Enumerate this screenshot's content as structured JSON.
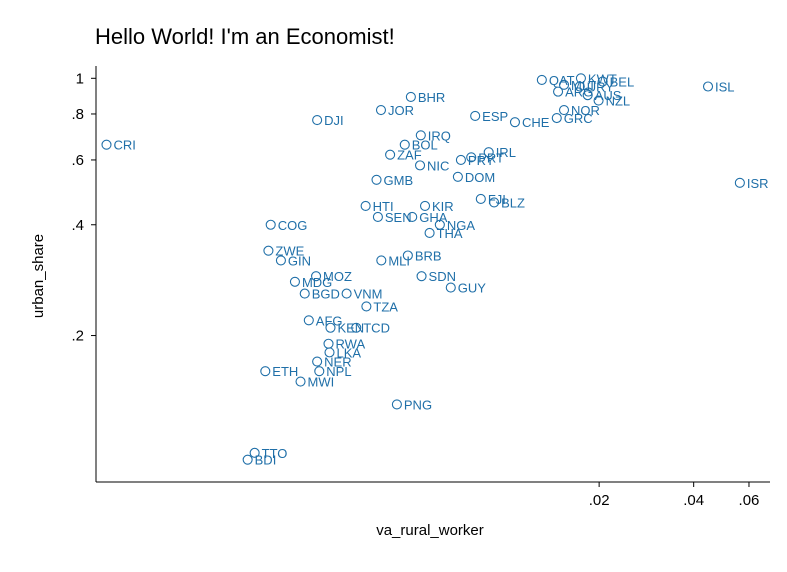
{
  "chart_data": {
    "type": "scatter",
    "title": "Hello World! I'm an Economist!",
    "xlabel": "va_rural_worker",
    "ylabel": "urban_share",
    "x_scale": "log",
    "y_scale": "log",
    "xlim": [
      0.0005,
      0.07
    ],
    "ylim": [
      0.08,
      1.08
    ],
    "x_ticks": [
      {
        "value": 0.02,
        "label": ".02"
      },
      {
        "value": 0.04,
        "label": ".04"
      },
      {
        "value": 0.06,
        "label": ".06"
      }
    ],
    "y_ticks": [
      {
        "value": 0.2,
        "label": ".2"
      },
      {
        "value": 0.4,
        "label": ".4"
      },
      {
        "value": 0.6,
        "label": ".6"
      },
      {
        "value": 0.8,
        "label": ".8"
      },
      {
        "value": 1,
        "label": "1"
      }
    ],
    "marker_color": "#1f6fa8",
    "points": [
      {
        "label": "CRI",
        "x": 0.00054,
        "y": 0.66
      },
      {
        "label": "DJI",
        "x": 0.00253,
        "y": 0.77
      },
      {
        "label": "JOR",
        "x": 0.00404,
        "y": 0.82
      },
      {
        "label": "BHR",
        "x": 0.00503,
        "y": 0.89
      },
      {
        "label": "QAT",
        "x": 0.01314,
        "y": 0.99
      },
      {
        "label": "KWT",
        "x": 0.0175,
        "y": 1.0
      },
      {
        "label": "BEL",
        "x": 0.02052,
        "y": 0.98
      },
      {
        "label": "MLT",
        "x": 0.01546,
        "y": 0.96
      },
      {
        "label": "URY",
        "x": 0.01735,
        "y": 0.95
      },
      {
        "label": "ARG",
        "x": 0.0148,
        "y": 0.92
      },
      {
        "label": "AUS",
        "x": 0.01839,
        "y": 0.9
      },
      {
        "label": "NZL",
        "x": 0.01992,
        "y": 0.87
      },
      {
        "label": "ISL",
        "x": 0.04444,
        "y": 0.95
      },
      {
        "label": "ISR",
        "x": 0.05612,
        "y": 0.52
      },
      {
        "label": "NOR",
        "x": 0.01546,
        "y": 0.82
      },
      {
        "label": "GRC",
        "x": 0.01466,
        "y": 0.78
      },
      {
        "label": "CHE",
        "x": 0.01079,
        "y": 0.76
      },
      {
        "label": "ESP",
        "x": 0.00806,
        "y": 0.79
      },
      {
        "label": "PRT",
        "x": 0.00783,
        "y": 0.61
      },
      {
        "label": "IRL",
        "x": 0.0089,
        "y": 0.63
      },
      {
        "label": "IRQ",
        "x": 0.00541,
        "y": 0.7
      },
      {
        "label": "BOL",
        "x": 0.00481,
        "y": 0.66
      },
      {
        "label": "ZAF",
        "x": 0.00432,
        "y": 0.62
      },
      {
        "label": "NIC",
        "x": 0.00538,
        "y": 0.58
      },
      {
        "label": "PRY",
        "x": 0.00726,
        "y": 0.6
      },
      {
        "label": "DOM",
        "x": 0.0071,
        "y": 0.54
      },
      {
        "label": "GMB",
        "x": 0.00391,
        "y": 0.53
      },
      {
        "label": "BLZ",
        "x": 0.00926,
        "y": 0.46
      },
      {
        "label": "FJI",
        "x": 0.0084,
        "y": 0.47
      },
      {
        "label": "KIR",
        "x": 0.00558,
        "y": 0.45
      },
      {
        "label": "HTI",
        "x": 0.00361,
        "y": 0.45
      },
      {
        "label": "SEN",
        "x": 0.00395,
        "y": 0.42
      },
      {
        "label": "GHA",
        "x": 0.00508,
        "y": 0.42
      },
      {
        "label": "NGA",
        "x": 0.00622,
        "y": 0.4
      },
      {
        "label": "THA",
        "x": 0.00577,
        "y": 0.38
      },
      {
        "label": "COG",
        "x": 0.0018,
        "y": 0.4
      },
      {
        "label": "ZWE",
        "x": 0.00177,
        "y": 0.34
      },
      {
        "label": "GIN",
        "x": 0.00194,
        "y": 0.32
      },
      {
        "label": "MLI",
        "x": 0.00405,
        "y": 0.32
      },
      {
        "label": "BRB",
        "x": 0.00492,
        "y": 0.33
      },
      {
        "label": "MOZ",
        "x": 0.00251,
        "y": 0.29
      },
      {
        "label": "MDG",
        "x": 0.00215,
        "y": 0.28
      },
      {
        "label": "BGD",
        "x": 0.00231,
        "y": 0.26
      },
      {
        "label": "VNM",
        "x": 0.00314,
        "y": 0.26
      },
      {
        "label": "SDN",
        "x": 0.00544,
        "y": 0.29
      },
      {
        "label": "GUY",
        "x": 0.00674,
        "y": 0.27
      },
      {
        "label": "TZA",
        "x": 0.00363,
        "y": 0.24
      },
      {
        "label": "AFG",
        "x": 0.00238,
        "y": 0.22
      },
      {
        "label": "KEN",
        "x": 0.00279,
        "y": 0.21
      },
      {
        "label": "TCD",
        "x": 0.00337,
        "y": 0.21
      },
      {
        "label": "RWA",
        "x": 0.00275,
        "y": 0.19
      },
      {
        "label": "LKA",
        "x": 0.00277,
        "y": 0.18
      },
      {
        "label": "NER",
        "x": 0.00253,
        "y": 0.17
      },
      {
        "label": "ETH",
        "x": 0.00173,
        "y": 0.16
      },
      {
        "label": "NPL",
        "x": 0.00257,
        "y": 0.16
      },
      {
        "label": "MWI",
        "x": 0.00224,
        "y": 0.15
      },
      {
        "label": "PNG",
        "x": 0.00454,
        "y": 0.13
      },
      {
        "label": "TTO",
        "x": 0.0016,
        "y": 0.096
      },
      {
        "label": "BDI",
        "x": 0.00152,
        "y": 0.092
      }
    ]
  }
}
